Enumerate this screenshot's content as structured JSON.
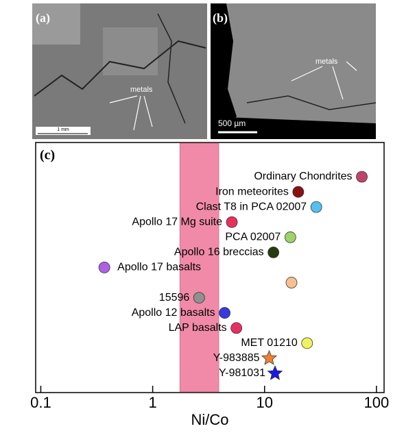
{
  "panels": [
    {
      "label": "(a)",
      "annotation": "metals",
      "scale_bar": "1 mm"
    },
    {
      "label": "(b)",
      "annotation": "metals",
      "scale_bar": "500 µm"
    }
  ],
  "chart_data": {
    "type": "scatter",
    "orientation": "horizontal",
    "panel_label": "(c)",
    "x_label": "Ni/Co",
    "categories": [
      "Ordinary Chondrites",
      "Iron meteorites",
      "Clast T8 in PCA 02007",
      "Apollo 17 Mg suite",
      "PCA 02007",
      "Apollo 16 breccias",
      "Apollo 17 basalts",
      null,
      "15596",
      "Apollo 12 basalts",
      "LAP basalts",
      "MET 01210",
      "Y-983885",
      "Y-981031"
    ],
    "values": [
      74,
      20,
      29,
      5.1,
      17,
      12,
      0.37,
      17.4,
      2.6,
      4.4,
      5.6,
      24,
      11,
      12.4
    ],
    "colors": [
      "#c0446a",
      "#8b1010",
      "#55c0f0",
      "#e8305a",
      "#9ed36a",
      "#2a3a10",
      "#b060e8",
      "#f8c090",
      "#909090",
      "#3838e0",
      "#e83060",
      "#f0f060",
      "#f08030",
      "#1818e8"
    ],
    "markers": [
      "circle",
      "circle",
      "circle",
      "circle",
      "circle",
      "circle",
      "circle",
      "circle",
      "circle",
      "circle",
      "circle",
      "circle",
      "star",
      "star"
    ],
    "band": {
      "from": 1.75,
      "to": 3.9,
      "color": "#f08aa8"
    },
    "log_x": true,
    "xlim": [
      0.09,
      117
    ],
    "xticks": [
      0.1,
      1,
      10,
      100
    ]
  }
}
